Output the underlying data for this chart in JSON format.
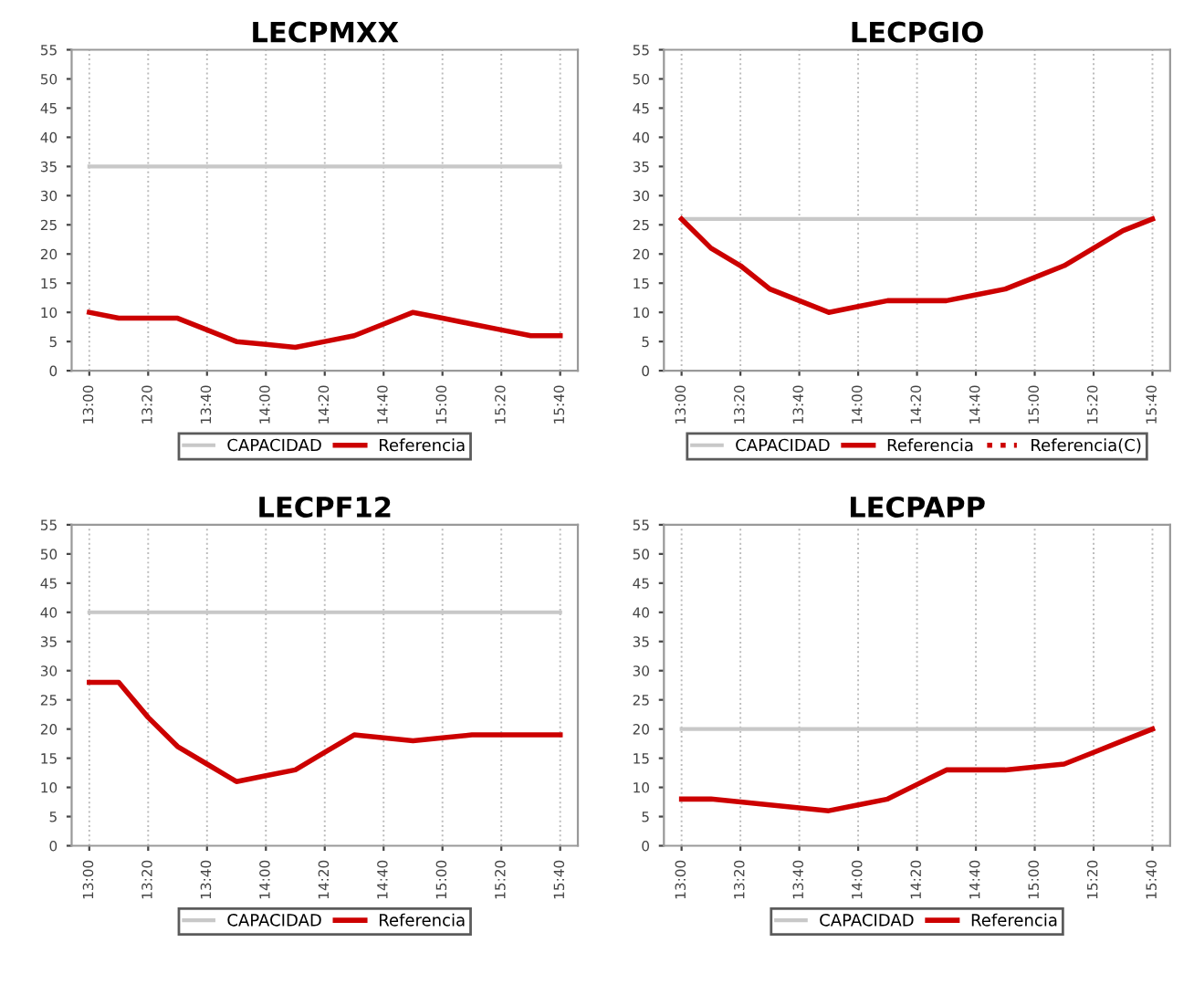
{
  "chart_data": [
    {
      "type": "line",
      "title": "LECPMXX",
      "categories": [
        "13:00",
        null,
        "13:20",
        null,
        "13:40",
        null,
        "14:00",
        null,
        "14:20",
        null,
        "14:40",
        null,
        "15:00",
        null,
        "15:20",
        null,
        "15:40"
      ],
      "ylim": [
        0,
        55
      ],
      "yticks": [
        0,
        5,
        10,
        15,
        20,
        25,
        30,
        35,
        40,
        45,
        50,
        55
      ],
      "grid": "x",
      "legend": "bottom",
      "marker": "none",
      "series": [
        {
          "name": "CAPACIDAD",
          "color": "#c8c8c8",
          "line_style": "solid",
          "values": [
            35,
            35,
            35,
            35,
            35,
            35,
            35,
            35,
            35,
            35,
            35,
            35,
            35,
            35,
            35,
            35,
            35
          ]
        },
        {
          "name": "Referencia",
          "color": "#cc0000",
          "line_style": "solid",
          "values": [
            10,
            9,
            9,
            9,
            7,
            5,
            4.5,
            4,
            5,
            6,
            8,
            10,
            9,
            8,
            7,
            6,
            6
          ]
        }
      ]
    },
    {
      "type": "line",
      "title": "LECPGIO",
      "categories": [
        "13:00",
        null,
        "13:20",
        null,
        "13:40",
        null,
        "14:00",
        null,
        "14:20",
        null,
        "14:40",
        null,
        "15:00",
        null,
        "15:20",
        null,
        "15:40"
      ],
      "ylim": [
        0,
        55
      ],
      "yticks": [
        0,
        5,
        10,
        15,
        20,
        25,
        30,
        35,
        40,
        45,
        50,
        55
      ],
      "grid": "x",
      "legend": "bottom",
      "marker": "none",
      "series": [
        {
          "name": "CAPACIDAD",
          "color": "#c8c8c8",
          "line_style": "solid",
          "values": [
            26,
            26,
            26,
            26,
            26,
            26,
            26,
            26,
            26,
            26,
            26,
            26,
            26,
            26,
            26,
            26,
            26
          ]
        },
        {
          "name": "Referencia",
          "color": "#cc0000",
          "line_style": "solid",
          "values": [
            26,
            21,
            18,
            14,
            12,
            10,
            11,
            12,
            12,
            12,
            13,
            14,
            16,
            18,
            21,
            24,
            26
          ]
        },
        {
          "name": "Referencia(C)",
          "color": "#cc0000",
          "line_style": "dotted",
          "values": [
            null,
            null,
            null,
            null,
            null,
            null,
            null,
            null,
            null,
            null,
            null,
            null,
            null,
            null,
            null,
            null,
            null
          ]
        }
      ]
    },
    {
      "type": "line",
      "title": "LECPF12",
      "categories": [
        "13:00",
        null,
        "13:20",
        null,
        "13:40",
        null,
        "14:00",
        null,
        "14:20",
        null,
        "14:40",
        null,
        "15:00",
        null,
        "15:20",
        null,
        "15:40"
      ],
      "ylim": [
        0,
        55
      ],
      "yticks": [
        0,
        5,
        10,
        15,
        20,
        25,
        30,
        35,
        40,
        45,
        50,
        55
      ],
      "grid": "x",
      "legend": "bottom",
      "marker": "none",
      "series": [
        {
          "name": "CAPACIDAD",
          "color": "#c8c8c8",
          "line_style": "solid",
          "values": [
            40,
            40,
            40,
            40,
            40,
            40,
            40,
            40,
            40,
            40,
            40,
            40,
            40,
            40,
            40,
            40,
            40
          ]
        },
        {
          "name": "Referencia",
          "color": "#cc0000",
          "line_style": "solid",
          "values": [
            28,
            28,
            22,
            17,
            14,
            11,
            12,
            13,
            16,
            19,
            18.5,
            18,
            18.5,
            19,
            19,
            19,
            19
          ]
        }
      ]
    },
    {
      "type": "line",
      "title": "LECPAPP",
      "categories": [
        "13:00",
        null,
        "13:20",
        null,
        "13:40",
        null,
        "14:00",
        null,
        "14:20",
        null,
        "14:40",
        null,
        "15:00",
        null,
        "15:20",
        null,
        "15:40"
      ],
      "ylim": [
        0,
        55
      ],
      "yticks": [
        0,
        5,
        10,
        15,
        20,
        25,
        30,
        35,
        40,
        45,
        50,
        55
      ],
      "grid": "x",
      "legend": "bottom",
      "marker": "none",
      "series": [
        {
          "name": "CAPACIDAD",
          "color": "#c8c8c8",
          "line_style": "solid",
          "values": [
            20,
            20,
            20,
            20,
            20,
            20,
            20,
            20,
            20,
            20,
            20,
            20,
            20,
            20,
            20,
            20,
            20
          ]
        },
        {
          "name": "Referencia",
          "color": "#cc0000",
          "line_style": "solid",
          "values": [
            8,
            8,
            7.5,
            7,
            6.5,
            6,
            7,
            8,
            10.5,
            13,
            13,
            13,
            13.5,
            14,
            16,
            18,
            20
          ]
        }
      ]
    }
  ]
}
